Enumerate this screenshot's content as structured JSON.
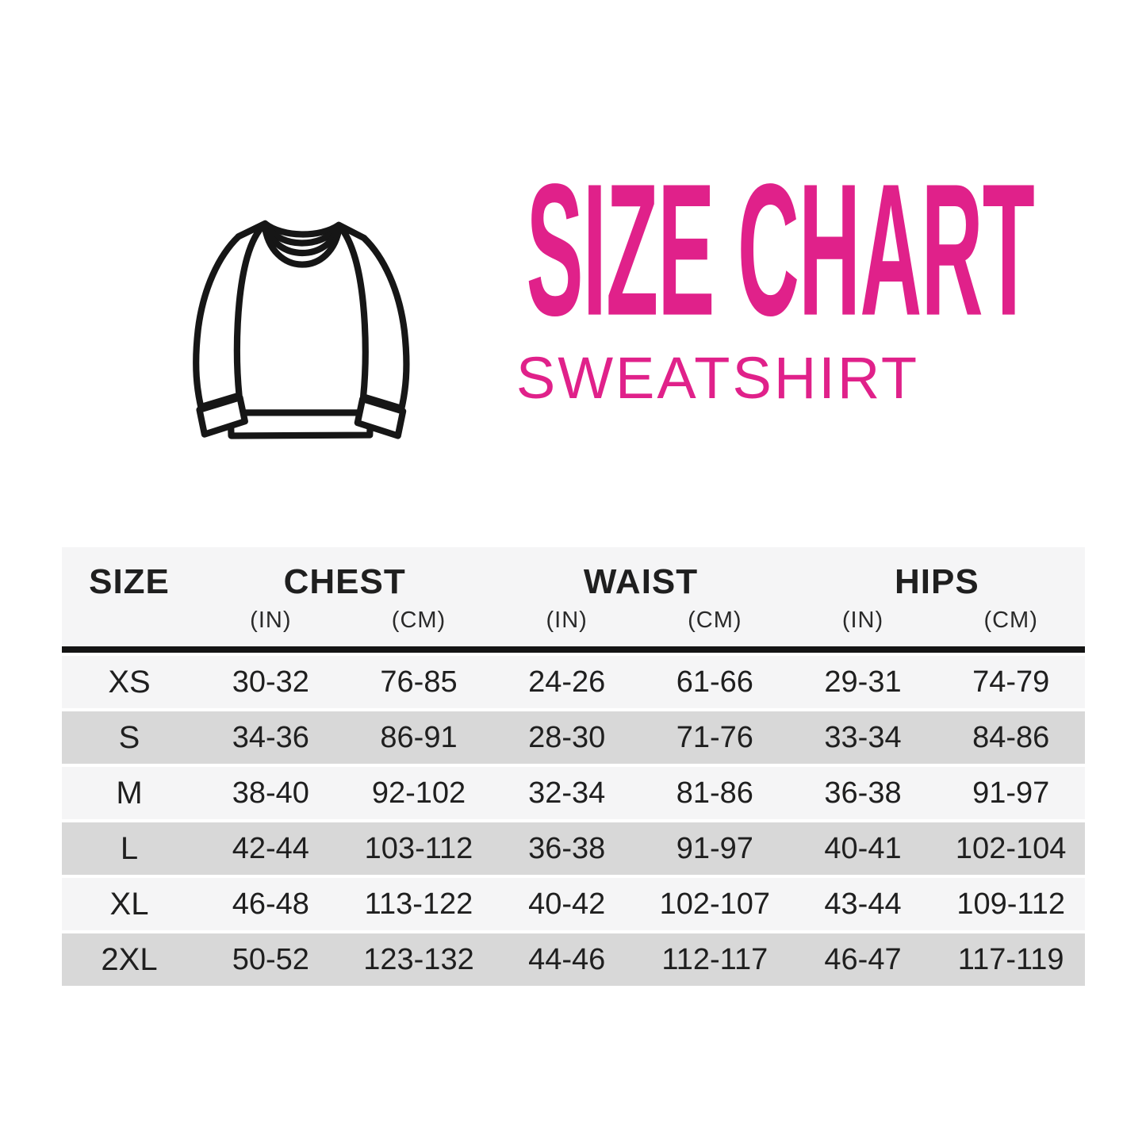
{
  "page": {
    "background": "#ffffff"
  },
  "header": {
    "icon": "sweatshirt-icon",
    "title": "SIZE CHART",
    "subtitle": "SWEATSHIRT",
    "accent_color": "#e0218a"
  },
  "table": {
    "size_label": "SIZE",
    "groups": [
      {
        "label": "CHEST",
        "units": [
          "(IN)",
          "(CM)"
        ]
      },
      {
        "label": "WAIST",
        "units": [
          "(IN)",
          "(CM)"
        ]
      },
      {
        "label": "HIPS",
        "units": [
          "(IN)",
          "(CM)"
        ]
      }
    ],
    "rows": [
      {
        "size": "XS",
        "values": [
          "30-32",
          "76-85",
          "24-26",
          "61-66",
          "29-31",
          "74-79"
        ]
      },
      {
        "size": "S",
        "values": [
          "34-36",
          "86-91",
          "28-30",
          "71-76",
          "33-34",
          "84-86"
        ]
      },
      {
        "size": "M",
        "values": [
          "38-40",
          "92-102",
          "32-34",
          "81-86",
          "36-38",
          "91-97"
        ]
      },
      {
        "size": "L",
        "values": [
          "42-44",
          "103-112",
          "36-38",
          "91-97",
          "40-41",
          "102-104"
        ]
      },
      {
        "size": "XL",
        "values": [
          "46-48",
          "113-122",
          "40-42",
          "102-107",
          "43-44",
          "109-112"
        ]
      },
      {
        "size": "2XL",
        "values": [
          "50-52",
          "123-132",
          "44-46",
          "112-117",
          "46-47",
          "117-119"
        ]
      }
    ],
    "colors": {
      "header_bg": "#f5f5f6",
      "row_light": "#f5f5f6",
      "row_dark": "#d8d8d8",
      "divider": "#141414",
      "text": "#1f1f1f"
    }
  },
  "chart_data": {
    "type": "table",
    "title": "SIZE CHART",
    "subtitle": "SWEATSHIRT",
    "columns": [
      "SIZE",
      "CHEST (IN)",
      "CHEST (CM)",
      "WAIST (IN)",
      "WAIST (CM)",
      "HIPS (IN)",
      "HIPS (CM)"
    ],
    "rows": [
      [
        "XS",
        "30-32",
        "76-85",
        "24-26",
        "61-66",
        "29-31",
        "74-79"
      ],
      [
        "S",
        "34-36",
        "86-91",
        "28-30",
        "71-76",
        "33-34",
        "84-86"
      ],
      [
        "M",
        "38-40",
        "92-102",
        "32-34",
        "81-86",
        "36-38",
        "91-97"
      ],
      [
        "L",
        "42-44",
        "103-112",
        "36-38",
        "91-97",
        "40-41",
        "102-104"
      ],
      [
        "XL",
        "46-48",
        "113-122",
        "40-42",
        "102-107",
        "43-44",
        "109-112"
      ],
      [
        "2XL",
        "50-52",
        "123-132",
        "44-46",
        "112-117",
        "46-47",
        "117-119"
      ]
    ]
  }
}
